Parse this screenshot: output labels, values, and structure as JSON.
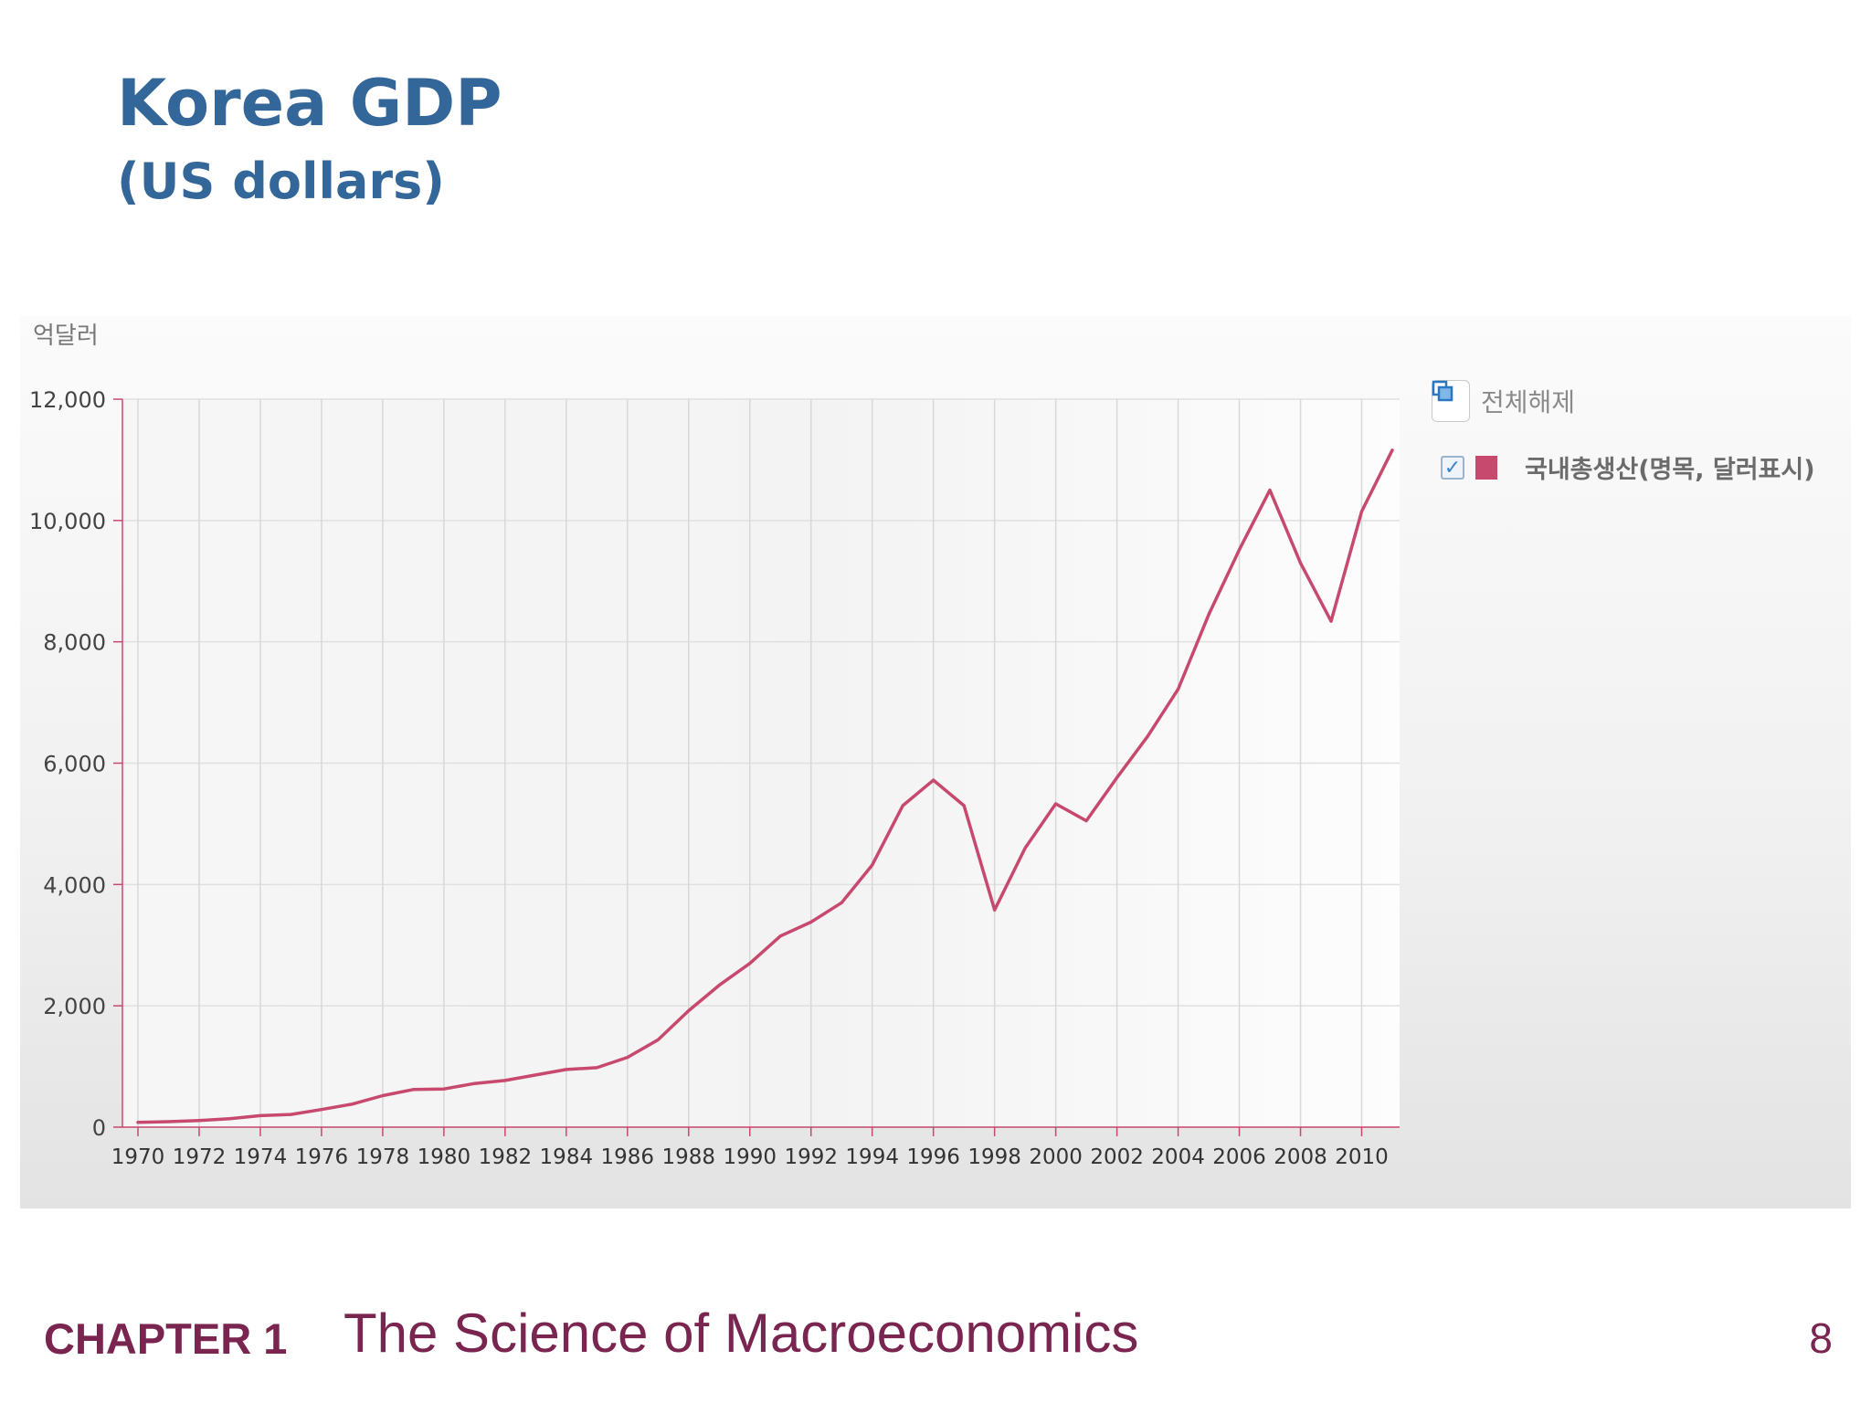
{
  "slide": {
    "title": "Korea GDP",
    "subtitle": "(US dollars)"
  },
  "legend": {
    "clear_label": "전체해제",
    "series_label": "국내총생산(명목, 달러표시)",
    "series_checked": true
  },
  "footer": {
    "chapter": "CHAPTER 1",
    "title": "The Science of Macroeconomics",
    "page": "8"
  },
  "colors": {
    "title": "#336699",
    "series": "#c8496e",
    "footer": "#7a2450"
  },
  "chart_data": {
    "type": "line",
    "title": "",
    "ylabel": "억달러",
    "xlabel": "",
    "ylim": [
      0,
      12000
    ],
    "xlim": [
      1970,
      2011
    ],
    "grid": true,
    "legend_position": "right",
    "yticks": [
      0,
      2000,
      4000,
      6000,
      8000,
      10000,
      12000
    ],
    "ytick_labels": [
      "0",
      "2,000",
      "4,000",
      "6,000",
      "8,000",
      "10,000",
      "12,000"
    ],
    "xticks": [
      1970,
      1972,
      1974,
      1976,
      1978,
      1980,
      1982,
      1984,
      1986,
      1988,
      1990,
      1992,
      1994,
      1996,
      1998,
      2000,
      2002,
      2004,
      2006,
      2008,
      2010
    ],
    "xtick_labels": [
      "1970",
      "1972",
      "1974",
      "1976",
      "1978",
      "1980",
      "1982",
      "1984",
      "1986",
      "1988",
      "1990",
      "1992",
      "1994",
      "1996",
      "1998",
      "2000",
      "2002",
      "2004",
      "2006",
      "2008",
      "2010"
    ],
    "series": [
      {
        "name": "국내총생산(명목, 달러표시)",
        "color": "#c8496e",
        "x": [
          1970,
          1971,
          1972,
          1973,
          1974,
          1975,
          1976,
          1977,
          1978,
          1979,
          1980,
          1981,
          1982,
          1983,
          1984,
          1985,
          1986,
          1987,
          1988,
          1989,
          1990,
          1991,
          1992,
          1993,
          1994,
          1995,
          1996,
          1997,
          1998,
          1999,
          2000,
          2001,
          2002,
          2003,
          2004,
          2005,
          2006,
          2007,
          2008,
          2009,
          2010,
          2011
        ],
        "values": [
          80,
          90,
          110,
          140,
          190,
          210,
          290,
          380,
          520,
          620,
          630,
          720,
          770,
          860,
          950,
          980,
          1150,
          1440,
          1920,
          2340,
          2700,
          3150,
          3380,
          3700,
          4320,
          5300,
          5720,
          5300,
          3580,
          4600,
          5330,
          5050,
          5760,
          6440,
          7220,
          8450,
          9520,
          10500,
          9300,
          8340,
          10150,
          11160
        ]
      }
    ]
  }
}
